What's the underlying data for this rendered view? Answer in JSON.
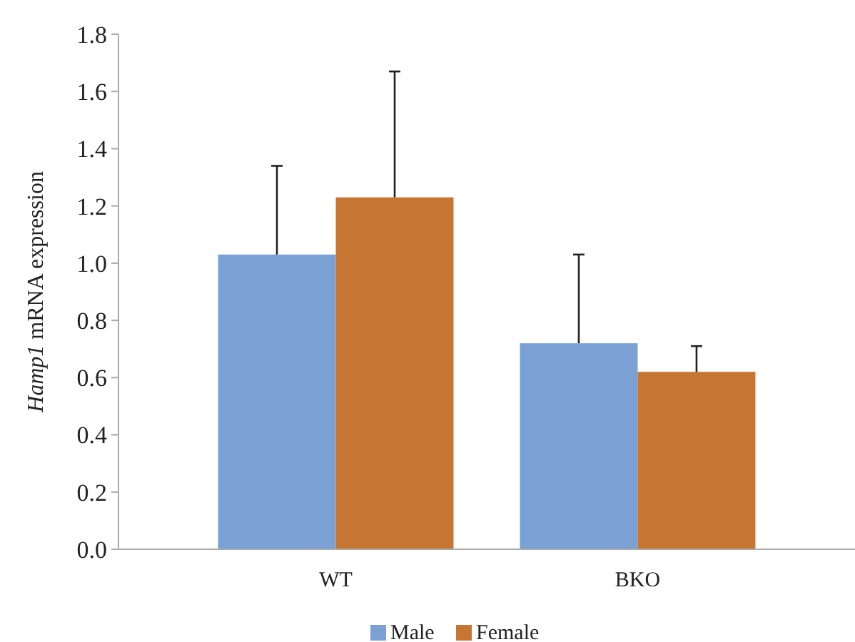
{
  "chart_data": {
    "type": "bar",
    "ylabel": "Hamp1 mRNA expression",
    "categories": [
      "WT",
      "BKO"
    ],
    "series": [
      {
        "name": "Male",
        "color": "#7aa0d4",
        "values": [
          1.03,
          0.72
        ],
        "errors": [
          [
            1.03,
            1.34
          ],
          [
            0.72,
            1.03
          ]
        ]
      },
      {
        "name": "Female",
        "color": "#c67632",
        "values": [
          1.23,
          0.62
        ],
        "errors": [
          [
            1.23,
            1.67
          ],
          [
            0.62,
            0.71
          ]
        ]
      }
    ],
    "ylim": [
      0,
      1.8
    ],
    "yticks": [
      {
        "value": 0,
        "label": "0.0"
      },
      0.2,
      0.4,
      0.6,
      0.8,
      {
        "value": 1,
        "label": "1.0"
      },
      1.2,
      1.4,
      1.6,
      1.8
    ],
    "grid": false,
    "legend": "bottom"
  }
}
